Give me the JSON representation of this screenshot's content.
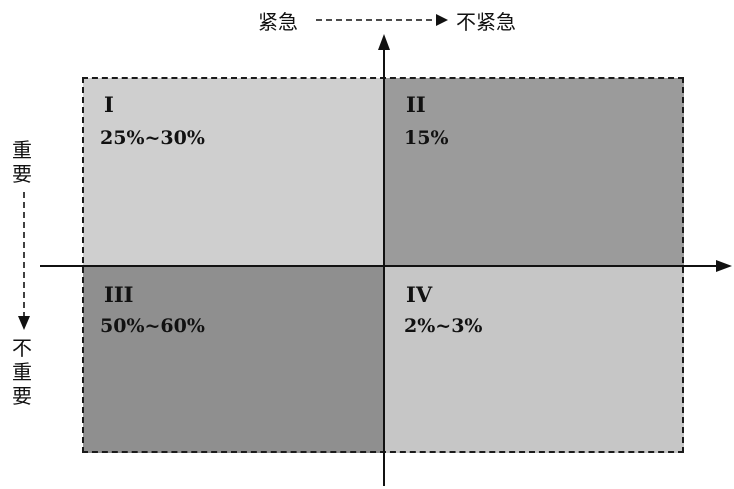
{
  "axes": {
    "top_left_label": "紧急",
    "top_right_label": "不紧急",
    "left_top_label": "重要",
    "left_bottom_label": "不重要"
  },
  "quadrants": [
    {
      "numeral": "I",
      "share": "25%~30%",
      "shade": "#cfcfcf"
    },
    {
      "numeral": "II",
      "share": "15%",
      "shade": "#9b9b9b"
    },
    {
      "numeral": "III",
      "share": "50%~60%",
      "shade": "#8f8f8f"
    },
    {
      "numeral": "IV",
      "share": "2%~3%",
      "shade": "#c6c6c6"
    }
  ]
}
